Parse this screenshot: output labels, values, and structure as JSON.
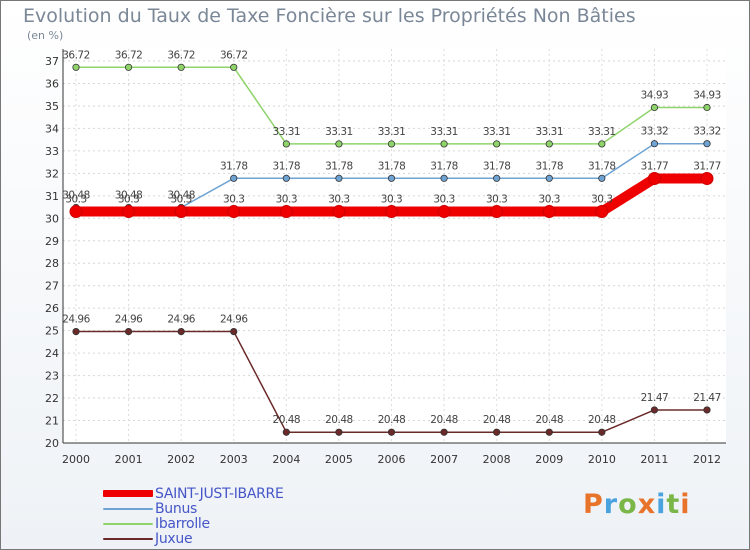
{
  "title": "Evolution du Taux de Taxe Foncière sur les Propriétés Non Bâties",
  "unit_label": "(en %)",
  "logo": {
    "text": "Proxiti",
    "colors": [
      "#e8732a",
      "#4aa3df",
      "#7ab648",
      "#e8732a",
      "#4aa3df",
      "#7ab648",
      "#e8732a"
    ]
  },
  "chart_data": {
    "type": "line",
    "title": "Evolution du Taux de Taxe Foncière sur les Propriétés Non Bâties",
    "ylabel": "(en %)",
    "xlabel": "",
    "ylim": [
      20,
      37
    ],
    "yticks": [
      20,
      21,
      22,
      23,
      24,
      25,
      26,
      27,
      28,
      29,
      30,
      31,
      32,
      33,
      34,
      35,
      36,
      37
    ],
    "categories": [
      "2000",
      "2001",
      "2002",
      "2003",
      "2004",
      "2005",
      "2006",
      "2007",
      "2008",
      "2009",
      "2010",
      "2011",
      "2012"
    ],
    "series": [
      {
        "name": "Juxue",
        "color": "#6b2a2a",
        "values": [
          24.96,
          24.96,
          24.96,
          24.96,
          20.48,
          20.48,
          20.48,
          20.48,
          20.48,
          20.48,
          20.48,
          21.47,
          21.47
        ]
      },
      {
        "name": "Ibarrolle",
        "color": "#8fd46a",
        "values": [
          36.72,
          36.72,
          36.72,
          36.72,
          33.31,
          33.31,
          33.31,
          33.31,
          33.31,
          33.31,
          33.31,
          34.93,
          34.93
        ]
      },
      {
        "name": "Bunus",
        "color": "#6fa3d3",
        "values": [
          30.48,
          30.48,
          30.48,
          31.78,
          31.78,
          31.78,
          31.78,
          31.78,
          31.78,
          31.78,
          31.78,
          33.32,
          33.32
        ]
      },
      {
        "name": "SAINT-JUST-IBARRE",
        "color": "#ee0000",
        "values": [
          30.3,
          30.3,
          30.3,
          30.3,
          30.3,
          30.3,
          30.3,
          30.3,
          30.3,
          30.3,
          30.3,
          31.77,
          31.77
        ]
      }
    ],
    "legend": [
      "SAINT-JUST-IBARRE",
      "Bunus",
      "Ibarrolle",
      "Juxue"
    ],
    "legend_position": "bottom-left"
  }
}
